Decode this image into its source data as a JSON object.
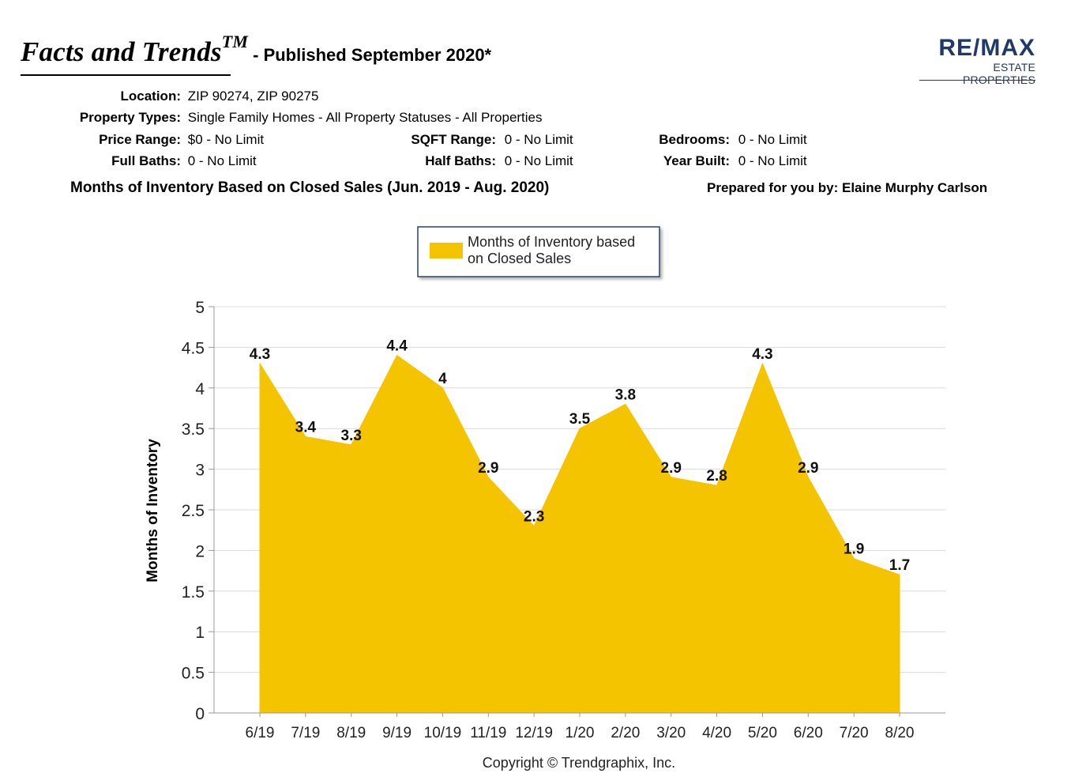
{
  "header": {
    "brand": "Facts and Trends",
    "trademark": "TM",
    "published": "- Published September 2020*",
    "logo_top": "RE/MAX",
    "logo_bottom": "ESTATE PROPERTIES"
  },
  "filters": {
    "location_label": "Location:",
    "location_value": "ZIP 90274, ZIP 90275",
    "property_types_label": "Property Types:",
    "property_types_value": "Single Family Homes - All Property Statuses - All Properties",
    "price_range_label": "Price Range:",
    "price_range_value": "$0 - No Limit",
    "sqft_range_label": "SQFT Range:",
    "sqft_range_value": "0 - No Limit",
    "bedrooms_label": "Bedrooms:",
    "bedrooms_value": "0 - No Limit",
    "full_baths_label": "Full Baths:",
    "full_baths_value": "0 - No Limit",
    "half_baths_label": "Half Baths:",
    "half_baths_value": "0 - No Limit",
    "year_built_label": "Year Built:",
    "year_built_value": "0 - No Limit"
  },
  "section_title": "Months of Inventory Based on Closed Sales (Jun. 2019 - Aug. 2020)",
  "prepared_by": "Prepared for you by: Elaine Murphy Carlson",
  "copyright": "Copyright © Trendgraphix, Inc.",
  "colors": {
    "area_fill": "#f5c400",
    "grid": "#d9d9d9",
    "axis": "#999999",
    "legend_border": "#2a3f6b"
  },
  "chart_data": {
    "type": "area",
    "categories": [
      "6/19",
      "7/19",
      "8/19",
      "9/19",
      "10/19",
      "11/19",
      "12/19",
      "1/20",
      "2/20",
      "3/20",
      "4/20",
      "5/20",
      "6/20",
      "7/20",
      "8/20"
    ],
    "series": [
      {
        "name": "Months of Inventory based on Closed Sales",
        "values": [
          4.3,
          3.4,
          3.3,
          4.4,
          4,
          2.9,
          2.3,
          3.5,
          3.8,
          2.9,
          2.8,
          4.3,
          2.9,
          1.9,
          1.7
        ]
      }
    ],
    "labels": [
      "4.3",
      "3.4",
      "3.3",
      "4.4",
      "4",
      "2.9",
      "2.3",
      "3.5",
      "3.8",
      "2.9",
      "2.8",
      "4.3",
      "2.9",
      "1.9",
      "1.7"
    ],
    "yticks": [
      "0",
      "0.5",
      "1",
      "1.5",
      "2",
      "2.5",
      "3",
      "3.5",
      "4",
      "4.5",
      "5"
    ],
    "ylabel": "Months of Inventory",
    "ylim": [
      0,
      5
    ],
    "legend_position": "top",
    "legend_line1": "Months of Inventory based",
    "legend_line2": "on Closed Sales",
    "grid": true
  }
}
